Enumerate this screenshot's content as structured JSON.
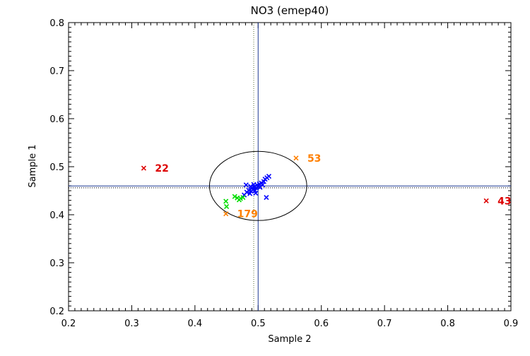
{
  "chart_data": {
    "type": "scatter",
    "title": "NO3 (emep40)",
    "xlabel": "Sample 2",
    "ylabel": "Sample 1",
    "xlim": [
      0.2,
      0.9
    ],
    "ylim": [
      0.2,
      0.8
    ],
    "xticks": [
      "0.2",
      "0.3",
      "0.4",
      "0.5",
      "0.6",
      "0.7",
      "0.8",
      "0.9"
    ],
    "yticks": [
      "0.2",
      "0.3",
      "0.4",
      "0.5",
      "0.6",
      "0.7",
      "0.8"
    ],
    "grid": false,
    "legend": "none",
    "marker": "x",
    "reference_lines": {
      "solid_vertical_x": 0.5,
      "dotted_vertical_x": 0.493,
      "solid_horizontal_y": 0.46,
      "dotted_horizontal_y": 0.456
    },
    "ellipse": {
      "center": [
        0.5,
        0.46
      ],
      "semi_axis_x": 0.077,
      "semi_axis_y": 0.072
    },
    "series": [
      {
        "color": "#0000ff",
        "points": [
          [
            0.478,
            0.441
          ],
          [
            0.482,
            0.447
          ],
          [
            0.485,
            0.451
          ],
          [
            0.487,
            0.444
          ],
          [
            0.489,
            0.449
          ],
          [
            0.49,
            0.455
          ],
          [
            0.492,
            0.452
          ],
          [
            0.494,
            0.458
          ],
          [
            0.495,
            0.45
          ],
          [
            0.497,
            0.456
          ],
          [
            0.498,
            0.462
          ],
          [
            0.5,
            0.459
          ],
          [
            0.502,
            0.464
          ],
          [
            0.503,
            0.457
          ],
          [
            0.505,
            0.466
          ],
          [
            0.507,
            0.462
          ],
          [
            0.509,
            0.469
          ],
          [
            0.511,
            0.474
          ],
          [
            0.514,
            0.477
          ],
          [
            0.517,
            0.48
          ],
          [
            0.481,
            0.462
          ],
          [
            0.488,
            0.459
          ],
          [
            0.496,
            0.445
          ],
          [
            0.493,
            0.463
          ],
          [
            0.513,
            0.436
          ]
        ]
      },
      {
        "color": "#00dd00",
        "points": [
          [
            0.449,
            0.428
          ],
          [
            0.45,
            0.417
          ],
          [
            0.463,
            0.438
          ],
          [
            0.467,
            0.435
          ],
          [
            0.472,
            0.434
          ],
          [
            0.476,
            0.436
          ],
          [
            0.47,
            0.431
          ]
        ]
      },
      {
        "color": "#ff7f00",
        "points": [
          [
            0.56,
            0.518
          ],
          [
            0.449,
            0.402
          ]
        ]
      },
      {
        "color": "#dd0000",
        "points": [
          [
            0.319,
            0.497
          ],
          [
            0.861,
            0.429
          ]
        ]
      }
    ],
    "annotations": [
      {
        "text": "22",
        "x": 0.319,
        "y": 0.497,
        "color": "#dd0000"
      },
      {
        "text": "53",
        "x": 0.56,
        "y": 0.518,
        "color": "#ff7f00"
      },
      {
        "text": "179",
        "x": 0.449,
        "y": 0.402,
        "color": "#ff7f00"
      },
      {
        "text": "43",
        "x": 0.861,
        "y": 0.429,
        "color": "#dd0000"
      }
    ]
  }
}
